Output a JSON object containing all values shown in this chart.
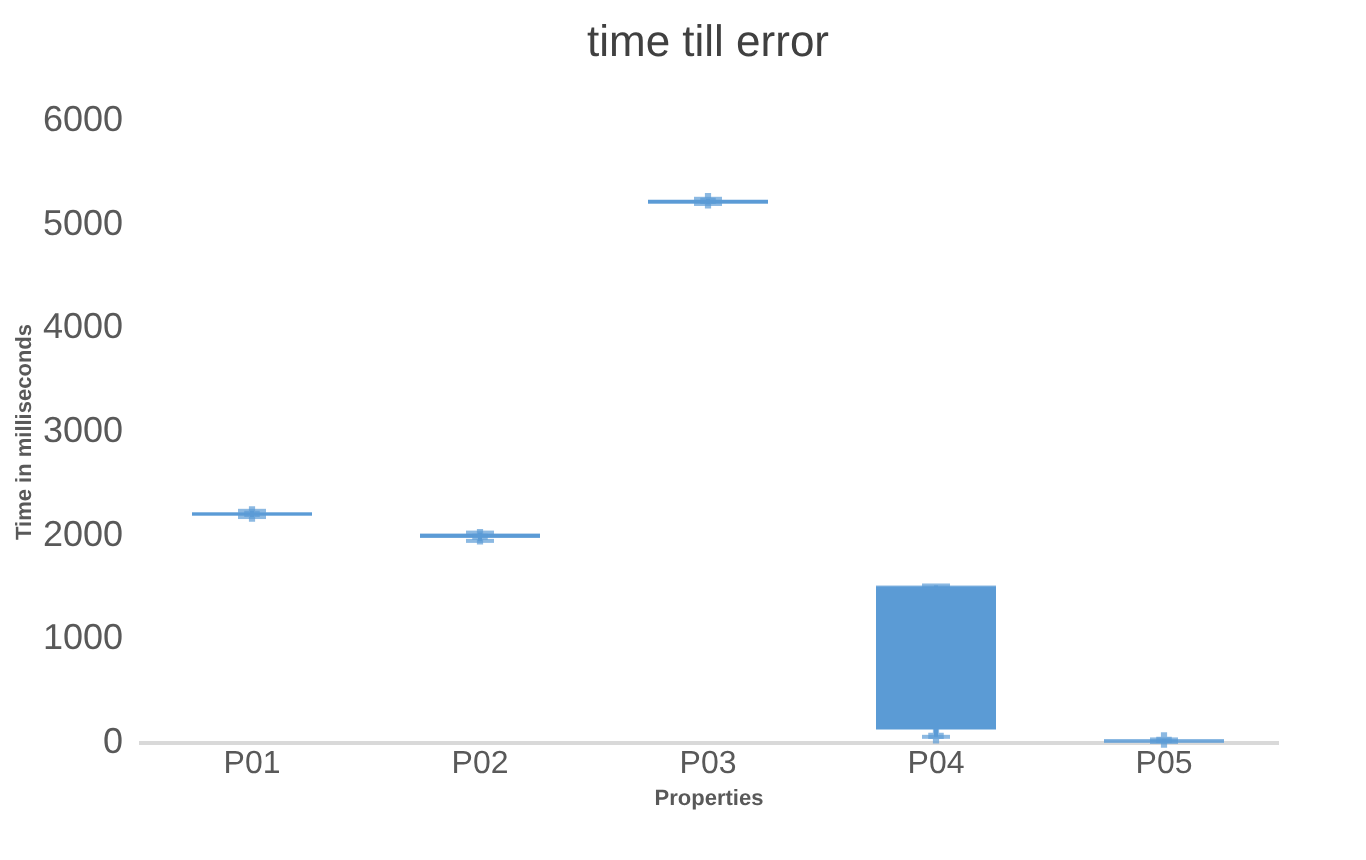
{
  "chart_data": {
    "type": "box",
    "title": "time till error",
    "xlabel": "Properties",
    "ylabel": "Time in milliseconds",
    "categories": [
      "P01",
      "P02",
      "P03",
      "P04",
      "P05"
    ],
    "series": [
      {
        "color": "#5b9bd5",
        "boxes": [
          {
            "low": 2170,
            "q1": 2190,
            "median": 2200,
            "q3": 2210,
            "high": 2230,
            "mean": 2200
          },
          {
            "low": 1940,
            "q1": 1970,
            "median": 1990,
            "q3": 2010,
            "high": 2020,
            "mean": 1980
          },
          {
            "low": 5190,
            "q1": 5200,
            "median": 5210,
            "q3": 5230,
            "high": 5240,
            "mean": 5220
          },
          {
            "low": 50,
            "q1": 120,
            "median": 1490,
            "q3": 1500,
            "high": 1510,
            "mean": 60
          },
          {
            "low": 0,
            "q1": 5,
            "median": 10,
            "q3": 15,
            "high": 25,
            "mean": 20
          }
        ]
      }
    ],
    "ylim": [
      0,
      6000
    ],
    "yticks": [
      0,
      1000,
      2000,
      3000,
      4000,
      5000,
      6000
    ],
    "grid": false,
    "marker": "cross"
  }
}
